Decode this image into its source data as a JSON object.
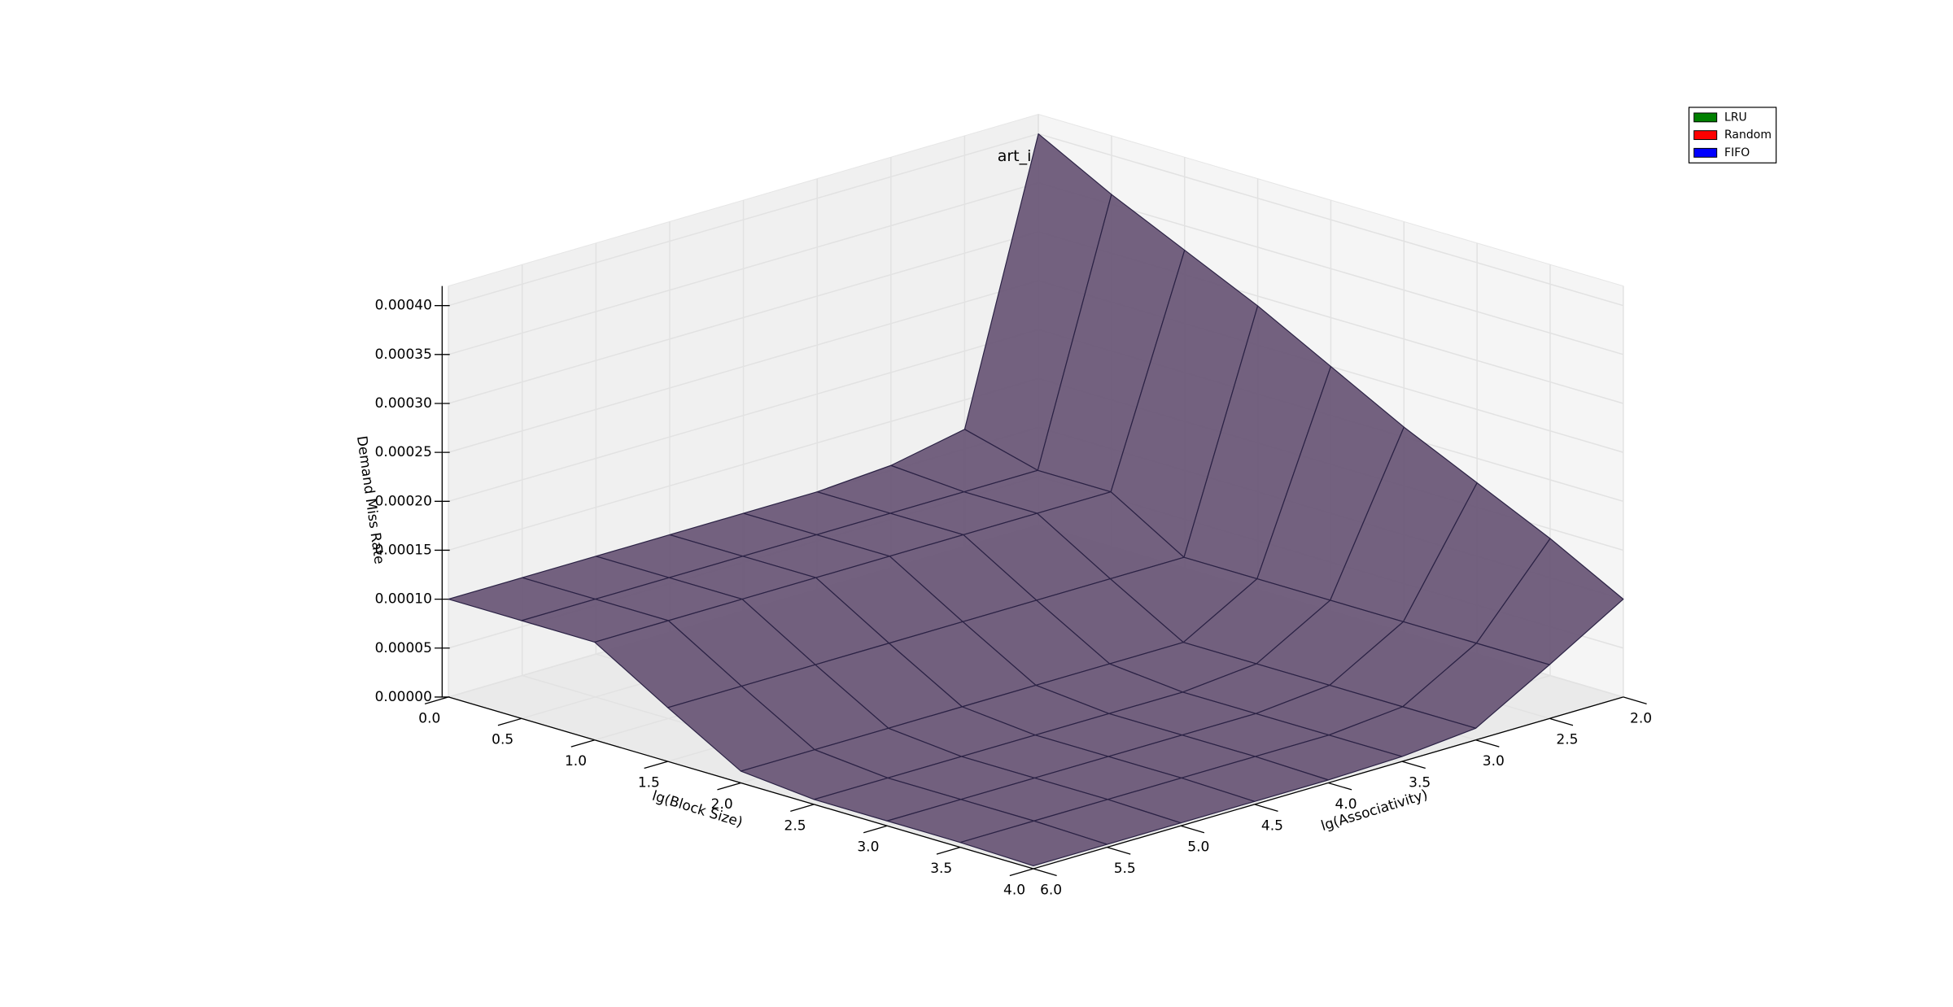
{
  "chart_data": {
    "type": "surface3d",
    "title": "art_i",
    "xlabel": "lg(Block Size)",
    "ylabel": "lg(Associativity)",
    "zlabel": "Demand Miss Rate",
    "x": [
      0,
      0.5,
      1,
      1.5,
      2,
      2.5,
      3,
      3.5,
      4
    ],
    "y": [
      2,
      2.5,
      3,
      3.5,
      4,
      4.5,
      5,
      5.5,
      6
    ],
    "z": [
      [
        0.0004,
        0.00012,
        0.000105,
        0.0001,
        0.0001,
        0.0001,
        0.0001,
        0.0001,
        0.0001
      ],
      [
        0.00036,
        0.0001,
        0.0001,
        0.0001,
        0.0001,
        0.0001,
        0.0001,
        0.0001,
        0.0001
      ],
      [
        0.000325,
        0.0001,
        0.0001,
        0.0001,
        0.0001,
        0.0001,
        0.0001,
        0.0001,
        0.0001
      ],
      [
        0.00029,
        5.5e-05,
        5.5e-05,
        5.5e-05,
        5.5e-05,
        5.5e-05,
        5.5e-05,
        5.5e-05,
        5.5e-05
      ],
      [
        0.00025,
        5.5e-05,
        1.2e-05,
        1.2e-05,
        1.2e-05,
        1.2e-05,
        1.2e-05,
        1.2e-05,
        1.2e-05
      ],
      [
        0.00021,
        5.5e-05,
        1.2e-05,
        5e-06,
        5e-06,
        5e-06,
        5e-06,
        5e-06,
        5e-06
      ],
      [
        0.000175,
        5.5e-05,
        1.2e-05,
        5e-06,
        5e-06,
        5e-06,
        5e-06,
        5e-06,
        5e-06
      ],
      [
        0.00014,
        5.5e-05,
        1.2e-05,
        5e-06,
        5e-06,
        5e-06,
        5e-06,
        5e-06,
        5e-06
      ],
      [
        0.0001,
        5.5e-05,
        1.2e-05,
        5e-06,
        3e-06,
        3e-06,
        3e-06,
        3e-06,
        3e-06
      ]
    ],
    "surface_color": "#6b5878",
    "series": [
      {
        "name": "LRU",
        "color": "#008000"
      },
      {
        "name": "Random",
        "color": "#ff0000"
      },
      {
        "name": "FIFO",
        "color": "#0000ff"
      }
    ],
    "xlim": [
      0,
      4
    ],
    "ylim": [
      2,
      6
    ],
    "zlim": [
      0,
      0.00042
    ],
    "xticks": [
      {
        "value": 0,
        "label": "0.0"
      },
      {
        "value": 0.5,
        "label": "0.5"
      },
      {
        "value": 1,
        "label": "1.0"
      },
      {
        "value": 1.5,
        "label": "1.5"
      },
      {
        "value": 2,
        "label": "2.0"
      },
      {
        "value": 2.5,
        "label": "2.5"
      },
      {
        "value": 3,
        "label": "3.0"
      },
      {
        "value": 3.5,
        "label": "3.5"
      },
      {
        "value": 4,
        "label": "4.0"
      }
    ],
    "yticks": [
      {
        "value": 2,
        "label": "2.0"
      },
      {
        "value": 2.5,
        "label": "2.5"
      },
      {
        "value": 3,
        "label": "3.0"
      },
      {
        "value": 3.5,
        "label": "3.5"
      },
      {
        "value": 4,
        "label": "4.0"
      },
      {
        "value": 4.5,
        "label": "4.5"
      },
      {
        "value": 5,
        "label": "5.0"
      },
      {
        "value": 5.5,
        "label": "5.5"
      },
      {
        "value": 6,
        "label": "6.0"
      }
    ],
    "zticks": [
      {
        "value": 0,
        "label": "0.00000"
      },
      {
        "value": 5e-05,
        "label": "0.00005"
      },
      {
        "value": 0.0001,
        "label": "0.00010"
      },
      {
        "value": 0.00015,
        "label": "0.00015"
      },
      {
        "value": 0.0002,
        "label": "0.00020"
      },
      {
        "value": 0.00025,
        "label": "0.00025"
      },
      {
        "value": 0.0003,
        "label": "0.00030"
      },
      {
        "value": 0.00035,
        "label": "0.00035"
      },
      {
        "value": 0.0004,
        "label": "0.00040"
      }
    ],
    "grid": true,
    "legend": "upper right"
  }
}
